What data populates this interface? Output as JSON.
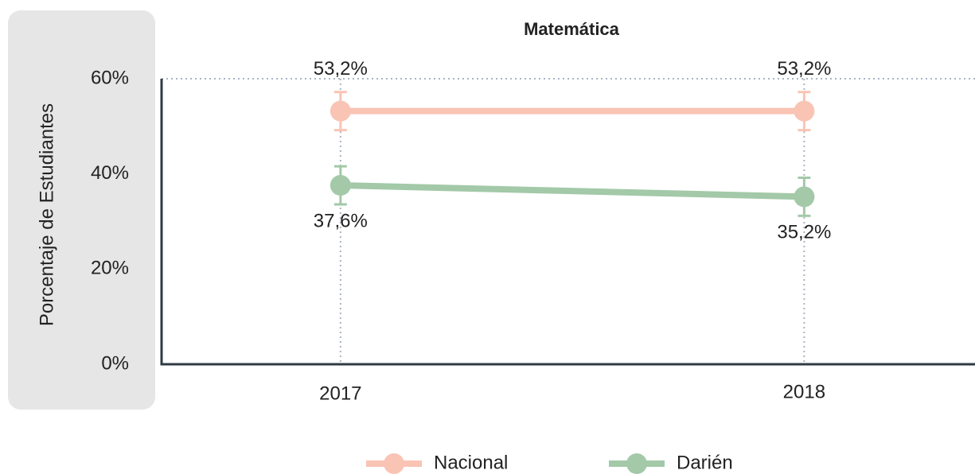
{
  "chart_data": {
    "type": "line",
    "title": "Matemática",
    "y_label": "Porcentaje de Estudiantes",
    "categories": [
      "2017",
      "2018"
    ],
    "series": [
      {
        "name": "Nacional",
        "color": "#f9c4b4",
        "values": [
          53.2,
          53.2
        ],
        "value_labels": [
          "53,2%",
          "53,2%"
        ],
        "errors": [
          4,
          4
        ]
      },
      {
        "name": "Darién",
        "color": "#a3c9a8",
        "values": [
          37.6,
          35.2
        ],
        "value_labels": [
          "37,6%",
          "35,2%"
        ],
        "errors": [
          4,
          4
        ]
      }
    ],
    "ylim": [
      0,
      60
    ],
    "yticks": [
      {
        "value": 0,
        "label": "0%"
      },
      {
        "value": 20,
        "label": "20%"
      },
      {
        "value": 40,
        "label": "40%"
      },
      {
        "value": 60,
        "label": "60%"
      }
    ]
  }
}
